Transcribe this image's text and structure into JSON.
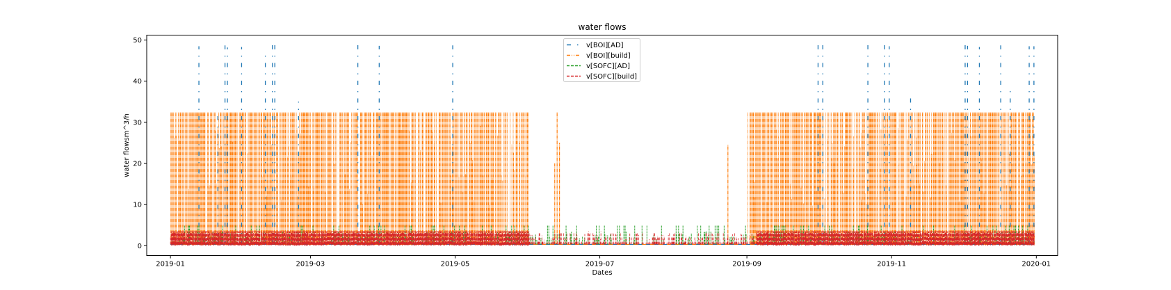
{
  "chart_data": {
    "type": "line",
    "title": "water flows",
    "xlabel": "Dates",
    "ylabel": "water flowsm^3/h",
    "x_range": [
      "2018-12-22",
      "2020-01-10"
    ],
    "ylim": [
      -2.4,
      51.2
    ],
    "x_ticks": [
      "2019-01",
      "2019-03",
      "2019-05",
      "2019-07",
      "2019-09",
      "2019-11",
      "2020-01"
    ],
    "x_tick_dates": [
      "2019-01-01",
      "2019-03-01",
      "2019-05-01",
      "2019-07-01",
      "2019-09-01",
      "2019-11-01",
      "2020-01-01"
    ],
    "y_ticks": [
      0,
      10,
      20,
      30,
      40,
      50
    ],
    "grid": false,
    "legend_position": "top-center",
    "series": [
      {
        "name": "v[BOI][AD]",
        "color": "#1f77b4",
        "linestyle": "dashdot-sparse",
        "baseline": 0.3,
        "spikes": [
          [
            "2019-01-13",
            48.5
          ],
          [
            "2019-01-21",
            33.0
          ],
          [
            "2019-01-24",
            48.7
          ],
          [
            "2019-01-25",
            48.2
          ],
          [
            "2019-01-31",
            48.3
          ],
          [
            "2019-02-10",
            47.2
          ],
          [
            "2019-02-13",
            48.8
          ],
          [
            "2019-02-14",
            49.0
          ],
          [
            "2019-02-24",
            35.0
          ],
          [
            "2019-03-21",
            49.0
          ],
          [
            "2019-03-30",
            48.6
          ],
          [
            "2019-04-30",
            48.7
          ],
          [
            "2019-10-01",
            49.0
          ],
          [
            "2019-10-03",
            49.0
          ],
          [
            "2019-10-22",
            49.0
          ],
          [
            "2019-10-29",
            49.0
          ],
          [
            "2019-10-31",
            48.5
          ],
          [
            "2019-11-09",
            36.0
          ],
          [
            "2019-12-02",
            49.0
          ],
          [
            "2019-12-03",
            48.6
          ],
          [
            "2019-12-08",
            48.3
          ],
          [
            "2019-12-17",
            48.7
          ],
          [
            "2019-12-21",
            39.0
          ],
          [
            "2019-12-29",
            48.5
          ],
          [
            "2019-12-31",
            48.5
          ]
        ]
      },
      {
        "name": "v[BOI][build]",
        "color": "#ff7f0e",
        "linestyle": "dashdotdot",
        "baseline": 0.3,
        "max_value": 32.5,
        "active_periods": [
          [
            "2019-01-01",
            "2019-06-01"
          ],
          [
            "2019-09-01",
            "2019-12-31"
          ]
        ],
        "isolated_peaks": [
          [
            "2019-06-12",
            20.0
          ],
          [
            "2019-06-13",
            32.5
          ],
          [
            "2019-06-14",
            25.0
          ],
          [
            "2019-08-24",
            24.5
          ]
        ]
      },
      {
        "name": "v[SOFC][AD]",
        "color": "#2ca02c",
        "linestyle": "dashed",
        "baseline": 0.3,
        "max_value": 5.0
      },
      {
        "name": "v[SOFC][build]",
        "color": "#d62728",
        "linestyle": "dashed",
        "baseline": 0.5,
        "max_value": 3.5
      }
    ]
  }
}
